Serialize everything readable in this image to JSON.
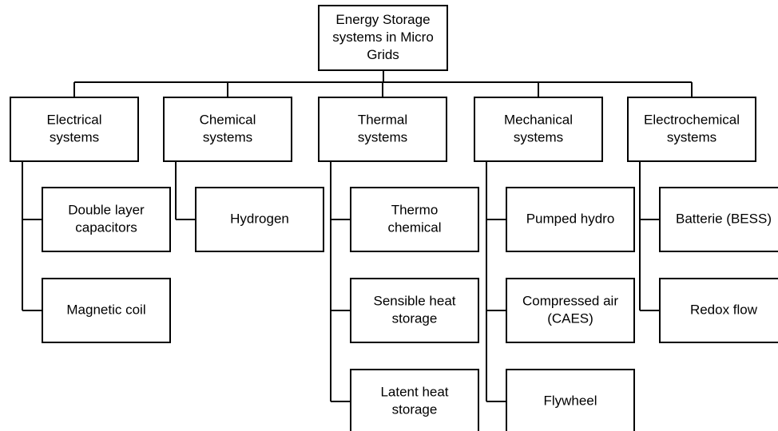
{
  "root": {
    "lines": [
      "Energy Storage",
      "systems in Micro",
      "Grids"
    ]
  },
  "categories": [
    {
      "lines": [
        "Electrical",
        "systems"
      ],
      "children": [
        {
          "lines": [
            "Double layer",
            "capacitors"
          ]
        },
        {
          "lines": [
            "Magnetic coil"
          ]
        }
      ]
    },
    {
      "lines": [
        "Chemical",
        "systems"
      ],
      "children": [
        {
          "lines": [
            "Hydrogen"
          ]
        }
      ]
    },
    {
      "lines": [
        "Thermal",
        "systems"
      ],
      "children": [
        {
          "lines": [
            "Thermo",
            "chemical"
          ]
        },
        {
          "lines": [
            "Sensible heat",
            "storage"
          ]
        },
        {
          "lines": [
            "Latent heat",
            "storage"
          ]
        }
      ]
    },
    {
      "lines": [
        "Mechanical",
        "systems"
      ],
      "children": [
        {
          "lines": [
            "Pumped hydro"
          ]
        },
        {
          "lines": [
            "Compressed air",
            "(CAES)"
          ]
        },
        {
          "lines": [
            "Flywheel"
          ]
        }
      ]
    },
    {
      "lines": [
        "Electrochemical",
        "systems"
      ],
      "children": [
        {
          "lines": [
            "Batterie (BESS)"
          ]
        },
        {
          "lines": [
            "Redox flow"
          ]
        }
      ]
    }
  ]
}
